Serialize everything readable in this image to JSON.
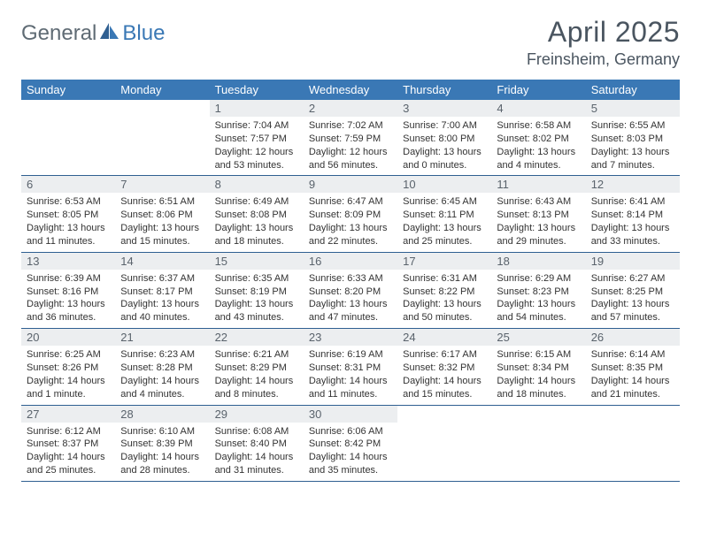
{
  "logo": {
    "part1": "General",
    "part2": "Blue"
  },
  "title": "April 2025",
  "location": "Freinsheim, Germany",
  "colors": {
    "header_bg": "#3a78b5",
    "header_text": "#ffffff",
    "daynum_bg": "#eceef0",
    "daynum_text": "#5a636c",
    "row_border": "#2f5f91",
    "title_color": "#4a5560",
    "logo_gray": "#5f6b74",
    "logo_blue": "#3a78b5",
    "background": "#ffffff"
  },
  "weekdays": [
    "Sunday",
    "Monday",
    "Tuesday",
    "Wednesday",
    "Thursday",
    "Friday",
    "Saturday"
  ],
  "weeks": [
    [
      {
        "n": "",
        "sr": "",
        "ss": "",
        "dl": "",
        "empty": true
      },
      {
        "n": "",
        "sr": "",
        "ss": "",
        "dl": "",
        "empty": true
      },
      {
        "n": "1",
        "sr": "Sunrise: 7:04 AM",
        "ss": "Sunset: 7:57 PM",
        "dl": "Daylight: 12 hours and 53 minutes."
      },
      {
        "n": "2",
        "sr": "Sunrise: 7:02 AM",
        "ss": "Sunset: 7:59 PM",
        "dl": "Daylight: 12 hours and 56 minutes."
      },
      {
        "n": "3",
        "sr": "Sunrise: 7:00 AM",
        "ss": "Sunset: 8:00 PM",
        "dl": "Daylight: 13 hours and 0 minutes."
      },
      {
        "n": "4",
        "sr": "Sunrise: 6:58 AM",
        "ss": "Sunset: 8:02 PM",
        "dl": "Daylight: 13 hours and 4 minutes."
      },
      {
        "n": "5",
        "sr": "Sunrise: 6:55 AM",
        "ss": "Sunset: 8:03 PM",
        "dl": "Daylight: 13 hours and 7 minutes."
      }
    ],
    [
      {
        "n": "6",
        "sr": "Sunrise: 6:53 AM",
        "ss": "Sunset: 8:05 PM",
        "dl": "Daylight: 13 hours and 11 minutes."
      },
      {
        "n": "7",
        "sr": "Sunrise: 6:51 AM",
        "ss": "Sunset: 8:06 PM",
        "dl": "Daylight: 13 hours and 15 minutes."
      },
      {
        "n": "8",
        "sr": "Sunrise: 6:49 AM",
        "ss": "Sunset: 8:08 PM",
        "dl": "Daylight: 13 hours and 18 minutes."
      },
      {
        "n": "9",
        "sr": "Sunrise: 6:47 AM",
        "ss": "Sunset: 8:09 PM",
        "dl": "Daylight: 13 hours and 22 minutes."
      },
      {
        "n": "10",
        "sr": "Sunrise: 6:45 AM",
        "ss": "Sunset: 8:11 PM",
        "dl": "Daylight: 13 hours and 25 minutes."
      },
      {
        "n": "11",
        "sr": "Sunrise: 6:43 AM",
        "ss": "Sunset: 8:13 PM",
        "dl": "Daylight: 13 hours and 29 minutes."
      },
      {
        "n": "12",
        "sr": "Sunrise: 6:41 AM",
        "ss": "Sunset: 8:14 PM",
        "dl": "Daylight: 13 hours and 33 minutes."
      }
    ],
    [
      {
        "n": "13",
        "sr": "Sunrise: 6:39 AM",
        "ss": "Sunset: 8:16 PM",
        "dl": "Daylight: 13 hours and 36 minutes."
      },
      {
        "n": "14",
        "sr": "Sunrise: 6:37 AM",
        "ss": "Sunset: 8:17 PM",
        "dl": "Daylight: 13 hours and 40 minutes."
      },
      {
        "n": "15",
        "sr": "Sunrise: 6:35 AM",
        "ss": "Sunset: 8:19 PM",
        "dl": "Daylight: 13 hours and 43 minutes."
      },
      {
        "n": "16",
        "sr": "Sunrise: 6:33 AM",
        "ss": "Sunset: 8:20 PM",
        "dl": "Daylight: 13 hours and 47 minutes."
      },
      {
        "n": "17",
        "sr": "Sunrise: 6:31 AM",
        "ss": "Sunset: 8:22 PM",
        "dl": "Daylight: 13 hours and 50 minutes."
      },
      {
        "n": "18",
        "sr": "Sunrise: 6:29 AM",
        "ss": "Sunset: 8:23 PM",
        "dl": "Daylight: 13 hours and 54 minutes."
      },
      {
        "n": "19",
        "sr": "Sunrise: 6:27 AM",
        "ss": "Sunset: 8:25 PM",
        "dl": "Daylight: 13 hours and 57 minutes."
      }
    ],
    [
      {
        "n": "20",
        "sr": "Sunrise: 6:25 AM",
        "ss": "Sunset: 8:26 PM",
        "dl": "Daylight: 14 hours and 1 minute."
      },
      {
        "n": "21",
        "sr": "Sunrise: 6:23 AM",
        "ss": "Sunset: 8:28 PM",
        "dl": "Daylight: 14 hours and 4 minutes."
      },
      {
        "n": "22",
        "sr": "Sunrise: 6:21 AM",
        "ss": "Sunset: 8:29 PM",
        "dl": "Daylight: 14 hours and 8 minutes."
      },
      {
        "n": "23",
        "sr": "Sunrise: 6:19 AM",
        "ss": "Sunset: 8:31 PM",
        "dl": "Daylight: 14 hours and 11 minutes."
      },
      {
        "n": "24",
        "sr": "Sunrise: 6:17 AM",
        "ss": "Sunset: 8:32 PM",
        "dl": "Daylight: 14 hours and 15 minutes."
      },
      {
        "n": "25",
        "sr": "Sunrise: 6:15 AM",
        "ss": "Sunset: 8:34 PM",
        "dl": "Daylight: 14 hours and 18 minutes."
      },
      {
        "n": "26",
        "sr": "Sunrise: 6:14 AM",
        "ss": "Sunset: 8:35 PM",
        "dl": "Daylight: 14 hours and 21 minutes."
      }
    ],
    [
      {
        "n": "27",
        "sr": "Sunrise: 6:12 AM",
        "ss": "Sunset: 8:37 PM",
        "dl": "Daylight: 14 hours and 25 minutes."
      },
      {
        "n": "28",
        "sr": "Sunrise: 6:10 AM",
        "ss": "Sunset: 8:39 PM",
        "dl": "Daylight: 14 hours and 28 minutes."
      },
      {
        "n": "29",
        "sr": "Sunrise: 6:08 AM",
        "ss": "Sunset: 8:40 PM",
        "dl": "Daylight: 14 hours and 31 minutes."
      },
      {
        "n": "30",
        "sr": "Sunrise: 6:06 AM",
        "ss": "Sunset: 8:42 PM",
        "dl": "Daylight: 14 hours and 35 minutes."
      },
      {
        "n": "",
        "sr": "",
        "ss": "",
        "dl": "",
        "empty": true
      },
      {
        "n": "",
        "sr": "",
        "ss": "",
        "dl": "",
        "empty": true
      },
      {
        "n": "",
        "sr": "",
        "ss": "",
        "dl": "",
        "empty": true
      }
    ]
  ]
}
